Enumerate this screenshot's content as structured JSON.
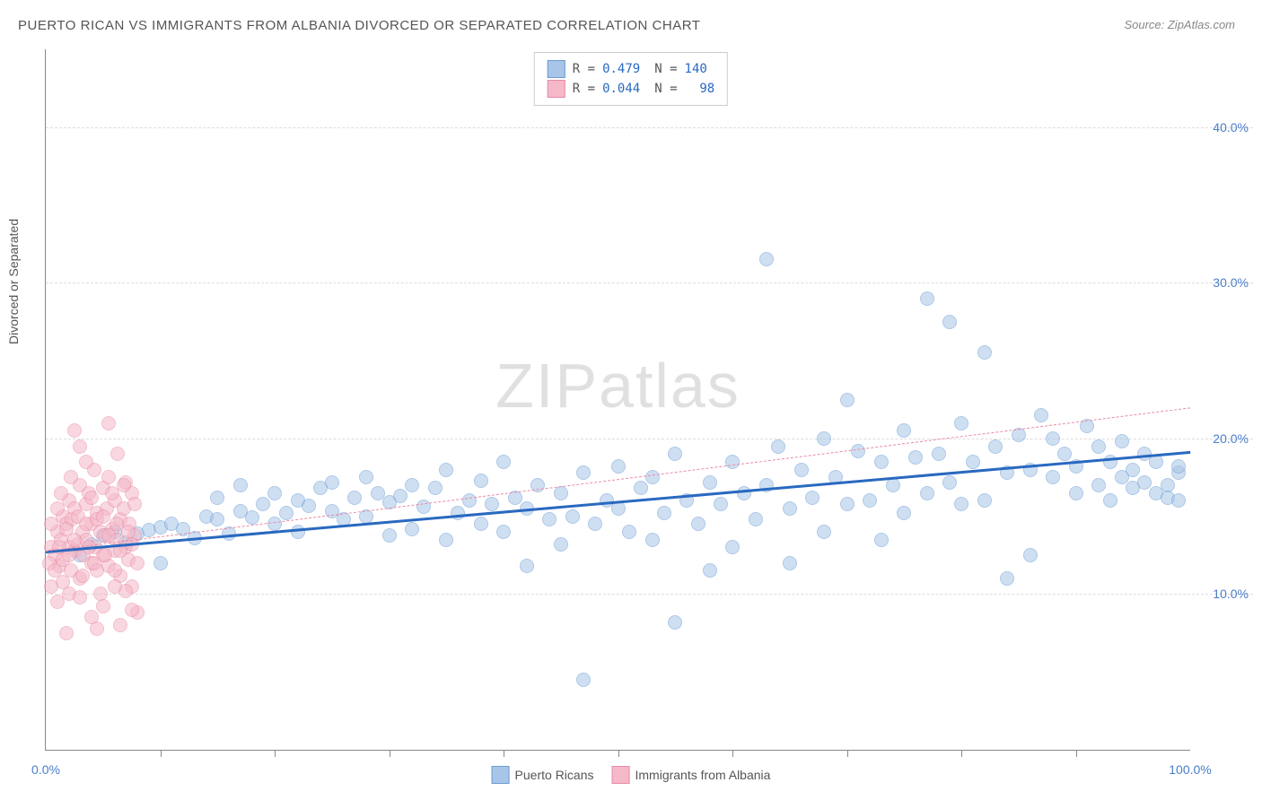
{
  "title": "PUERTO RICAN VS IMMIGRANTS FROM ALBANIA DIVORCED OR SEPARATED CORRELATION CHART",
  "source": "Source: ZipAtlas.com",
  "y_axis_label": "Divorced or Separated",
  "watermark_zip": "ZIP",
  "watermark_atlas": "atlas",
  "chart": {
    "type": "scatter",
    "xlim": [
      0,
      100
    ],
    "ylim": [
      0,
      45
    ],
    "y_ticks": [
      10,
      20,
      30,
      40
    ],
    "y_tick_labels": [
      "10.0%",
      "20.0%",
      "30.0%",
      "40.0%"
    ],
    "x_ticks": [
      0,
      50,
      100
    ],
    "x_tick_labels": [
      "0.0%",
      "",
      "100.0%"
    ],
    "x_minor_ticks": [
      10,
      20,
      30,
      40,
      50,
      60,
      70,
      80,
      90
    ],
    "background_color": "#ffffff",
    "grid_color": "#dddddd",
    "axis_color": "#888888",
    "tick_label_color": "#4a7ec9",
    "marker_radius": 7,
    "marker_opacity": 0.55,
    "series": [
      {
        "name": "Puerto Ricans",
        "color_fill": "#a8c5e8",
        "color_stroke": "#6b9cd4",
        "R": "0.479",
        "N": "140",
        "trend": {
          "x1": 0,
          "y1": 12.8,
          "x2": 100,
          "y2": 19.2,
          "color": "#2969c0",
          "width": 2.5,
          "dashed": false
        },
        "points": [
          [
            3,
            12.5
          ],
          [
            4,
            13.2
          ],
          [
            5,
            13.8
          ],
          [
            6,
            14.0
          ],
          [
            7,
            13.3
          ],
          [
            8,
            13.9
          ],
          [
            9,
            14.1
          ],
          [
            10,
            14.3
          ],
          [
            10,
            12.0
          ],
          [
            11,
            14.5
          ],
          [
            12,
            14.2
          ],
          [
            13,
            13.6
          ],
          [
            14,
            15.0
          ],
          [
            15,
            14.8
          ],
          [
            15,
            16.2
          ],
          [
            16,
            13.9
          ],
          [
            17,
            15.3
          ],
          [
            17,
            17.0
          ],
          [
            18,
            14.9
          ],
          [
            19,
            15.8
          ],
          [
            20,
            14.5
          ],
          [
            20,
            16.5
          ],
          [
            21,
            15.2
          ],
          [
            22,
            16.0
          ],
          [
            22,
            14.0
          ],
          [
            23,
            15.7
          ],
          [
            24,
            16.8
          ],
          [
            25,
            15.3
          ],
          [
            25,
            17.2
          ],
          [
            26,
            14.8
          ],
          [
            27,
            16.2
          ],
          [
            28,
            15.0
          ],
          [
            28,
            17.5
          ],
          [
            29,
            16.5
          ],
          [
            30,
            13.8
          ],
          [
            30,
            15.9
          ],
          [
            31,
            16.3
          ],
          [
            32,
            14.2
          ],
          [
            32,
            17.0
          ],
          [
            33,
            15.6
          ],
          [
            34,
            16.8
          ],
          [
            35,
            13.5
          ],
          [
            35,
            18.0
          ],
          [
            36,
            15.2
          ],
          [
            37,
            16.0
          ],
          [
            38,
            14.5
          ],
          [
            38,
            17.3
          ],
          [
            39,
            15.8
          ],
          [
            40,
            18.5
          ],
          [
            40,
            14.0
          ],
          [
            41,
            16.2
          ],
          [
            42,
            15.5
          ],
          [
            42,
            11.8
          ],
          [
            43,
            17.0
          ],
          [
            44,
            14.8
          ],
          [
            45,
            16.5
          ],
          [
            45,
            13.2
          ],
          [
            46,
            15.0
          ],
          [
            47,
            17.8
          ],
          [
            47,
            4.5
          ],
          [
            48,
            14.5
          ],
          [
            49,
            16.0
          ],
          [
            50,
            15.5
          ],
          [
            50,
            18.2
          ],
          [
            51,
            14.0
          ],
          [
            52,
            16.8
          ],
          [
            53,
            13.5
          ],
          [
            53,
            17.5
          ],
          [
            54,
            15.2
          ],
          [
            55,
            19.0
          ],
          [
            55,
            8.2
          ],
          [
            56,
            16.0
          ],
          [
            57,
            14.5
          ],
          [
            58,
            17.2
          ],
          [
            58,
            11.5
          ],
          [
            59,
            15.8
          ],
          [
            60,
            18.5
          ],
          [
            60,
            13.0
          ],
          [
            61,
            16.5
          ],
          [
            62,
            14.8
          ],
          [
            63,
            31.5
          ],
          [
            63,
            17.0
          ],
          [
            64,
            19.5
          ],
          [
            65,
            15.5
          ],
          [
            65,
            12.0
          ],
          [
            66,
            18.0
          ],
          [
            67,
            16.2
          ],
          [
            68,
            14.0
          ],
          [
            68,
            20.0
          ],
          [
            69,
            17.5
          ],
          [
            70,
            15.8
          ],
          [
            70,
            22.5
          ],
          [
            71,
            19.2
          ],
          [
            72,
            16.0
          ],
          [
            73,
            18.5
          ],
          [
            73,
            13.5
          ],
          [
            74,
            17.0
          ],
          [
            75,
            20.5
          ],
          [
            75,
            15.2
          ],
          [
            76,
            18.8
          ],
          [
            77,
            16.5
          ],
          [
            77,
            29.0
          ],
          [
            78,
            19.0
          ],
          [
            79,
            17.2
          ],
          [
            79,
            27.5
          ],
          [
            80,
            15.8
          ],
          [
            80,
            21.0
          ],
          [
            81,
            18.5
          ],
          [
            82,
            25.5
          ],
          [
            82,
            16.0
          ],
          [
            83,
            19.5
          ],
          [
            84,
            17.8
          ],
          [
            84,
            11.0
          ],
          [
            85,
            20.2
          ],
          [
            86,
            18.0
          ],
          [
            86,
            12.5
          ],
          [
            87,
            21.5
          ],
          [
            88,
            17.5
          ],
          [
            88,
            20.0
          ],
          [
            89,
            19.0
          ],
          [
            90,
            18.2
          ],
          [
            90,
            16.5
          ],
          [
            91,
            20.8
          ],
          [
            92,
            17.0
          ],
          [
            92,
            19.5
          ],
          [
            93,
            18.5
          ],
          [
            93,
            16.0
          ],
          [
            94,
            19.8
          ],
          [
            94,
            17.5
          ],
          [
            95,
            16.8
          ],
          [
            95,
            18.0
          ],
          [
            96,
            17.2
          ],
          [
            96,
            19.0
          ],
          [
            97,
            16.5
          ],
          [
            97,
            18.5
          ],
          [
            98,
            17.0
          ],
          [
            98,
            16.2
          ],
          [
            99,
            17.8
          ],
          [
            99,
            16.0
          ],
          [
            99,
            18.2
          ]
        ]
      },
      {
        "name": "Immigrants from Albania",
        "color_fill": "#f5b8c8",
        "color_stroke": "#e88ba5",
        "R": "0.044",
        "N": "98",
        "trend": {
          "x1": 0,
          "y1": 12.8,
          "x2": 100,
          "y2": 22.0,
          "color": "#e88ba5",
          "width": 1,
          "dashed": true
        },
        "points": [
          [
            0.5,
            13.0
          ],
          [
            0.8,
            12.5
          ],
          [
            1.0,
            14.0
          ],
          [
            1.2,
            11.8
          ],
          [
            1.3,
            13.5
          ],
          [
            1.5,
            15.0
          ],
          [
            1.5,
            12.2
          ],
          [
            1.8,
            14.5
          ],
          [
            2.0,
            13.0
          ],
          [
            2.0,
            16.0
          ],
          [
            2.2,
            11.5
          ],
          [
            2.3,
            14.8
          ],
          [
            2.5,
            12.8
          ],
          [
            2.5,
            15.5
          ],
          [
            2.8,
            13.2
          ],
          [
            3.0,
            17.0
          ],
          [
            3.0,
            11.0
          ],
          [
            3.2,
            14.0
          ],
          [
            3.3,
            12.5
          ],
          [
            3.5,
            15.8
          ],
          [
            3.5,
            13.5
          ],
          [
            3.8,
            16.5
          ],
          [
            4.0,
            12.0
          ],
          [
            4.0,
            14.5
          ],
          [
            4.2,
            18.0
          ],
          [
            4.3,
            13.0
          ],
          [
            4.5,
            15.2
          ],
          [
            4.5,
            11.5
          ],
          [
            4.8,
            14.0
          ],
          [
            5.0,
            16.8
          ],
          [
            5.0,
            12.5
          ],
          [
            5.2,
            13.8
          ],
          [
            5.3,
            15.5
          ],
          [
            5.5,
            17.5
          ],
          [
            5.5,
            11.8
          ],
          [
            5.8,
            14.2
          ],
          [
            6.0,
            12.8
          ],
          [
            6.0,
            16.0
          ],
          [
            6.2,
            13.5
          ],
          [
            6.3,
            19.0
          ],
          [
            6.5,
            14.8
          ],
          [
            6.5,
            11.2
          ],
          [
            6.8,
            15.5
          ],
          [
            7.0,
            13.0
          ],
          [
            7.0,
            17.2
          ],
          [
            7.2,
            12.2
          ],
          [
            7.3,
            14.5
          ],
          [
            7.5,
            16.5
          ],
          [
            7.5,
            10.5
          ],
          [
            7.8,
            13.8
          ],
          [
            0.3,
            12.0
          ],
          [
            0.5,
            14.5
          ],
          [
            0.8,
            11.5
          ],
          [
            1.0,
            15.5
          ],
          [
            1.2,
            13.0
          ],
          [
            1.3,
            16.5
          ],
          [
            1.5,
            10.8
          ],
          [
            1.8,
            14.2
          ],
          [
            2.0,
            12.5
          ],
          [
            2.2,
            17.5
          ],
          [
            2.5,
            13.5
          ],
          [
            2.8,
            15.0
          ],
          [
            3.0,
            19.5
          ],
          [
            3.2,
            11.2
          ],
          [
            3.5,
            14.5
          ],
          [
            3.8,
            13.0
          ],
          [
            4.0,
            16.2
          ],
          [
            4.2,
            12.0
          ],
          [
            4.5,
            14.8
          ],
          [
            4.8,
            10.0
          ],
          [
            5.0,
            15.0
          ],
          [
            5.2,
            12.5
          ],
          [
            5.5,
            13.8
          ],
          [
            5.8,
            16.5
          ],
          [
            6.0,
            11.5
          ],
          [
            6.2,
            14.5
          ],
          [
            6.5,
            12.8
          ],
          [
            6.8,
            17.0
          ],
          [
            7.0,
            10.2
          ],
          [
            7.2,
            14.0
          ],
          [
            7.5,
            13.2
          ],
          [
            7.8,
            15.8
          ],
          [
            8.0,
            8.8
          ],
          [
            8.0,
            12.0
          ],
          [
            1.0,
            9.5
          ],
          [
            2.0,
            10.0
          ],
          [
            3.0,
            9.8
          ],
          [
            4.0,
            8.5
          ],
          [
            5.0,
            9.2
          ],
          [
            6.0,
            10.5
          ],
          [
            2.5,
            20.5
          ],
          [
            3.5,
            18.5
          ],
          [
            1.8,
            7.5
          ],
          [
            4.5,
            7.8
          ],
          [
            6.5,
            8.0
          ],
          [
            5.5,
            21.0
          ],
          [
            7.5,
            9.0
          ],
          [
            0.5,
            10.5
          ]
        ]
      }
    ]
  },
  "legend_top_label_R": "R =",
  "legend_top_label_N": "N =",
  "legend_bottom": [
    {
      "label": "Puerto Ricans",
      "fill": "#a8c5e8",
      "stroke": "#6b9cd4"
    },
    {
      "label": "Immigrants from Albania",
      "fill": "#f5b8c8",
      "stroke": "#e88ba5"
    }
  ]
}
